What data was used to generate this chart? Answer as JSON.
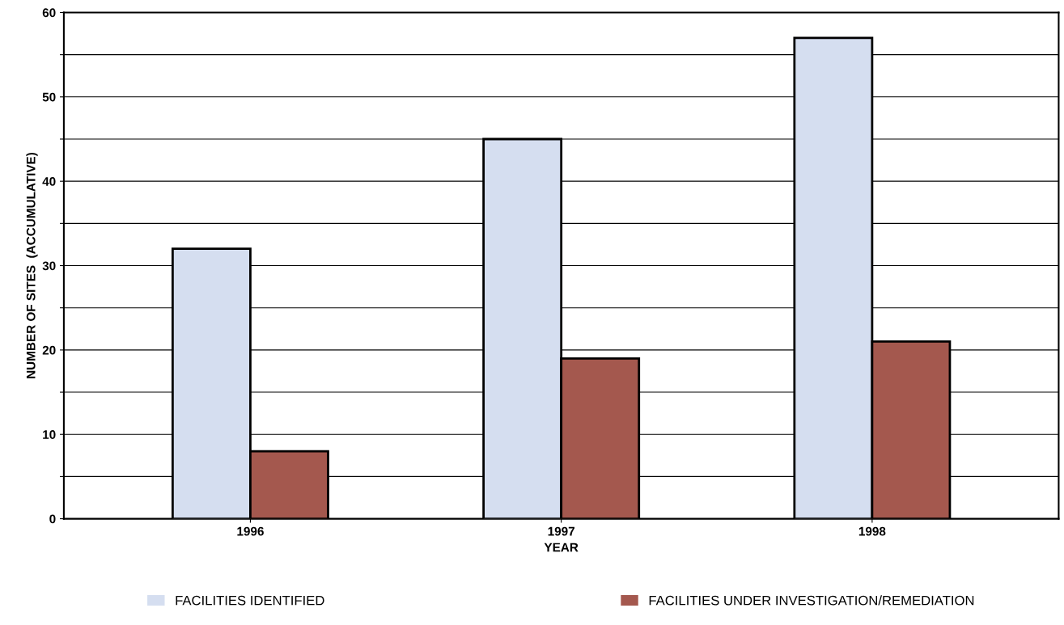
{
  "chart_data": {
    "type": "bar",
    "xlabel": "YEAR",
    "ylabel": "NUMBER OF SITES  (ACCUMULATIVE)",
    "categories": [
      "1996",
      "1997",
      "1998"
    ],
    "series": [
      {
        "name": "FACILITIES IDENTIFIED",
        "color": "#d5def0",
        "values": [
          32,
          45,
          57
        ]
      },
      {
        "name": "FACILITIES UNDER INVESTIGATION/REMEDIATION",
        "color": "#a4584e",
        "values": [
          8,
          19,
          21
        ]
      }
    ],
    "ylim": [
      0,
      60
    ],
    "yticks": [
      0,
      {
        "value": 5,
        "label": null
      },
      10,
      {
        "value": 15,
        "label": null
      },
      20,
      {
        "value": 25,
        "label": null
      },
      30,
      {
        "value": 35,
        "label": null
      },
      40,
      {
        "value": 45,
        "label": null
      },
      50,
      {
        "value": 55,
        "label": null
      },
      60
    ],
    "grid": "y",
    "legend": "bottom"
  }
}
